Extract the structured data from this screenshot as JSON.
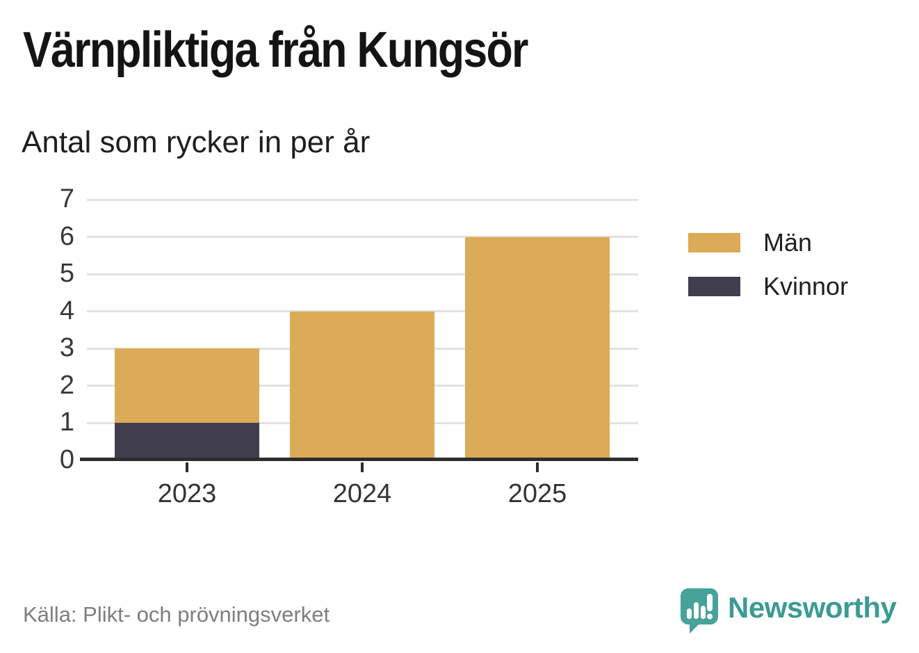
{
  "title": "Värnpliktiga från Kungsör",
  "subtitle": "Antal som rycker in per år",
  "source": "Källa: Plikt- och prövningsverket",
  "brand": {
    "name": "Newsworthy",
    "icon": "newsworthy-speech-bubble-bar-chart-icon",
    "color": "#3a9b94",
    "icon_color": "#47a29b"
  },
  "legend": {
    "position": "right",
    "items": [
      {
        "label": "Män",
        "color": "#dbab57"
      },
      {
        "label": "Kvinnor",
        "color": "#413f4e"
      }
    ]
  },
  "colors": {
    "men": "#dbab57",
    "women": "#413f4e",
    "gridline": "#e2e2e2",
    "axis": "#2d2d2d",
    "background": "#ffffff"
  },
  "chart_data": {
    "type": "bar",
    "stacked": true,
    "title": "Värnpliktiga från Kungsör",
    "subtitle": "Antal som rycker in per år",
    "xlabel": "",
    "ylabel": "",
    "categories": [
      "2023",
      "2024",
      "2025"
    ],
    "series": [
      {
        "name": "Män",
        "color": "#dbab57",
        "values": [
          2,
          4,
          6
        ]
      },
      {
        "name": "Kvinnor",
        "color": "#413f4e",
        "values": [
          1,
          0,
          0
        ]
      }
    ],
    "stack_totals": [
      3,
      4,
      6
    ],
    "ylim": [
      0,
      7
    ],
    "yticks": [
      0,
      1,
      2,
      3,
      4,
      5,
      6,
      7
    ],
    "grid": true,
    "legend_position": "right",
    "source": "Källa: Plikt- och prövningsverket"
  }
}
